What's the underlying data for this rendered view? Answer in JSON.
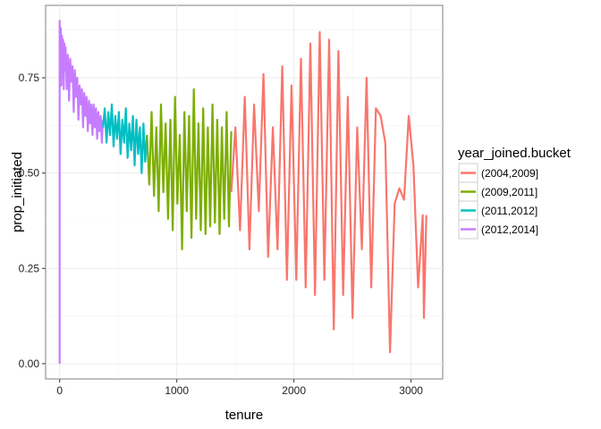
{
  "chart_data": {
    "type": "line",
    "xlabel": "tenure",
    "ylabel": "prop_initiated",
    "xlim": [
      -120,
      3270
    ],
    "ylim": [
      -0.04,
      0.94
    ],
    "x_ticks": [
      0,
      1000,
      2000,
      3000
    ],
    "x_tick_labels": [
      "0",
      "1000",
      "2000",
      "3000"
    ],
    "y_ticks": [
      0.0,
      0.25,
      0.5,
      0.75
    ],
    "y_tick_labels": [
      "0.00",
      "0.25",
      "0.50",
      "0.75"
    ],
    "grid": true,
    "legend": {
      "title": "year_joined.bucket",
      "placement": "right"
    },
    "series": [
      {
        "name": "(2012,2014]",
        "color": "#C77CFF",
        "x": [
          0,
          0,
          5,
          10,
          15,
          20,
          25,
          30,
          35,
          40,
          45,
          50,
          60,
          70,
          80,
          90,
          100,
          110,
          120,
          130,
          140,
          150,
          160,
          170,
          180,
          190,
          200,
          210,
          220,
          230,
          240,
          250,
          260,
          270,
          280,
          290,
          300,
          310,
          320,
          330,
          340,
          350,
          360,
          370
        ],
        "values": [
          0.0,
          0.9,
          0.75,
          0.88,
          0.73,
          0.86,
          0.76,
          0.85,
          0.72,
          0.84,
          0.77,
          0.83,
          0.72,
          0.81,
          0.69,
          0.8,
          0.74,
          0.78,
          0.66,
          0.77,
          0.7,
          0.75,
          0.64,
          0.73,
          0.68,
          0.72,
          0.62,
          0.71,
          0.65,
          0.7,
          0.61,
          0.69,
          0.63,
          0.68,
          0.6,
          0.68,
          0.62,
          0.67,
          0.59,
          0.66,
          0.61,
          0.65,
          0.58,
          0.64
        ]
      },
      {
        "name": "(2011,2012]",
        "color": "#00BFC4",
        "x": [
          370,
          385,
          400,
          415,
          430,
          445,
          460,
          475,
          490,
          505,
          520,
          535,
          550,
          565,
          580,
          595,
          610,
          625,
          640,
          655,
          670,
          685,
          700,
          715,
          730,
          745
        ],
        "values": [
          0.62,
          0.67,
          0.58,
          0.66,
          0.6,
          0.68,
          0.57,
          0.65,
          0.59,
          0.66,
          0.55,
          0.64,
          0.58,
          0.67,
          0.54,
          0.63,
          0.56,
          0.65,
          0.52,
          0.64,
          0.55,
          0.62,
          0.5,
          0.63,
          0.53,
          0.6
        ]
      },
      {
        "name": "(2009,2011]",
        "color": "#7CAE00",
        "x": [
          745,
          765,
          785,
          805,
          825,
          845,
          865,
          885,
          905,
          925,
          945,
          965,
          985,
          1005,
          1025,
          1045,
          1065,
          1085,
          1105,
          1125,
          1145,
          1165,
          1185,
          1205,
          1225,
          1245,
          1265,
          1285,
          1305,
          1325,
          1345,
          1365,
          1385,
          1405,
          1425,
          1445,
          1465
        ],
        "values": [
          0.6,
          0.47,
          0.66,
          0.44,
          0.62,
          0.4,
          0.68,
          0.45,
          0.63,
          0.38,
          0.64,
          0.35,
          0.7,
          0.42,
          0.6,
          0.3,
          0.66,
          0.4,
          0.65,
          0.33,
          0.72,
          0.38,
          0.63,
          0.35,
          0.67,
          0.34,
          0.62,
          0.36,
          0.68,
          0.37,
          0.64,
          0.34,
          0.62,
          0.38,
          0.66,
          0.36,
          0.61
        ]
      },
      {
        "name": "(2004,2009]",
        "color": "#F8766D",
        "x": [
          1465,
          1500,
          1540,
          1580,
          1620,
          1660,
          1700,
          1740,
          1780,
          1820,
          1860,
          1900,
          1940,
          1980,
          2020,
          2060,
          2100,
          2140,
          2180,
          2220,
          2260,
          2300,
          2340,
          2380,
          2420,
          2460,
          2500,
          2540,
          2580,
          2620,
          2660,
          2700,
          2740,
          2780,
          2820,
          2860,
          2900,
          2940,
          2980,
          3020,
          3060,
          3100,
          3110,
          3130
        ],
        "values": [
          0.45,
          0.62,
          0.35,
          0.7,
          0.3,
          0.68,
          0.4,
          0.76,
          0.28,
          0.62,
          0.3,
          0.78,
          0.22,
          0.73,
          0.22,
          0.8,
          0.2,
          0.84,
          0.18,
          0.87,
          0.22,
          0.85,
          0.09,
          0.82,
          0.18,
          0.7,
          0.12,
          0.62,
          0.3,
          0.75,
          0.2,
          0.67,
          0.65,
          0.58,
          0.03,
          0.42,
          0.46,
          0.43,
          0.65,
          0.52,
          0.2,
          0.39,
          0.12,
          0.39
        ]
      }
    ]
  }
}
